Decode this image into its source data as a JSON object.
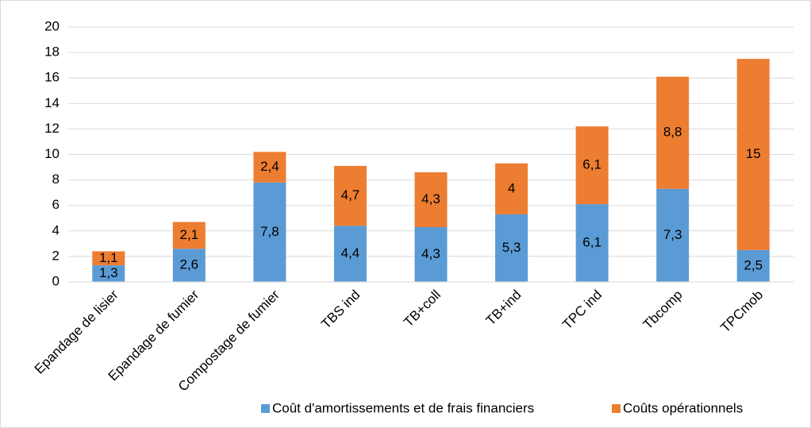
{
  "chart_data": {
    "type": "stacked_bar",
    "categories": [
      "Epandage de lisier",
      "Epandage de fumier",
      "Compostage de fumier",
      "TBS ind",
      "TB+coll",
      "TB+ind",
      "TPC ind",
      "Tbcomp",
      "TPCmob"
    ],
    "series": [
      {
        "name": "Coût d'amortissements et de frais financiers",
        "color": "#5b9bd5",
        "values": [
          1.3,
          2.6,
          7.8,
          4.4,
          4.3,
          5.3,
          6.1,
          7.3,
          2.5
        ],
        "value_labels": [
          "1,3",
          "2,6",
          "7,8",
          "4,4",
          "4,3",
          "5,3",
          "6,1",
          "7,3",
          "2,5"
        ]
      },
      {
        "name": "Coûts opérationnels",
        "color": "#ed7d31",
        "values": [
          1.1,
          2.1,
          2.4,
          4.7,
          4.3,
          4,
          6.1,
          8.8,
          15
        ],
        "value_labels": [
          "1,1",
          "2,1",
          "2,4",
          "4,7",
          "4,3",
          "4",
          "6,1",
          "8,8",
          "15"
        ]
      }
    ],
    "ylim": [
      0,
      20
    ],
    "yticks": [
      0,
      2,
      4,
      6,
      8,
      10,
      12,
      14,
      16,
      18,
      20
    ],
    "grid": true,
    "legend": "bottom"
  }
}
